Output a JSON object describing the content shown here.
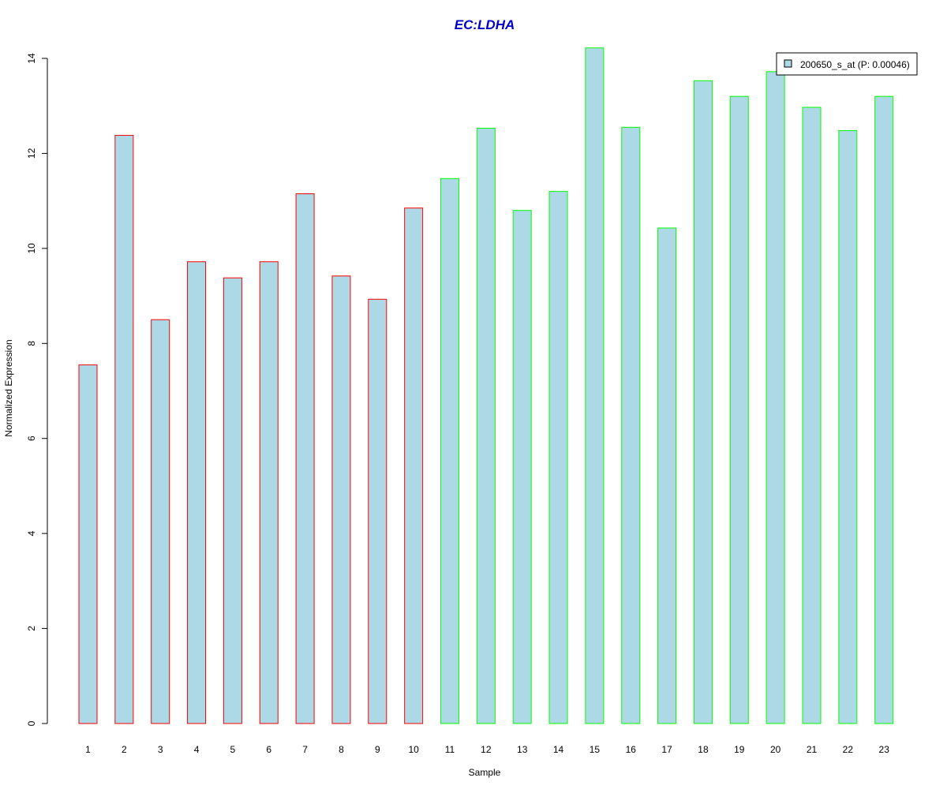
{
  "chart_data": {
    "type": "bar",
    "title": "EC:LDHA",
    "title_color": "#0000CC",
    "xlabel": "Sample",
    "ylabel": "Normalized Expression",
    "ylim": [
      0,
      14
    ],
    "yticks": [
      "0",
      "2",
      "4",
      "6",
      "8",
      "10",
      "12",
      "14"
    ],
    "categories": [
      "1",
      "2",
      "3",
      "4",
      "5",
      "6",
      "7",
      "8",
      "9",
      "10",
      "11",
      "12",
      "13",
      "14",
      "15",
      "16",
      "17",
      "18",
      "19",
      "20",
      "21",
      "22",
      "23"
    ],
    "series": [
      {
        "name": "200650_s_at (P: 0.00046)",
        "values": [
          7.55,
          12.38,
          8.5,
          9.72,
          9.38,
          9.72,
          11.15,
          9.42,
          8.93,
          10.85,
          11.47,
          12.53,
          10.8,
          11.2,
          14.22,
          12.55,
          10.43,
          13.53,
          13.2,
          13.72,
          12.97,
          12.48,
          13.2
        ]
      }
    ],
    "groups": [
      {
        "samples": [
          "1",
          "2",
          "3",
          "4",
          "5",
          "6",
          "7",
          "8",
          "9",
          "10"
        ],
        "border_color": "#FF0000"
      },
      {
        "samples": [
          "11",
          "12",
          "13",
          "14",
          "15",
          "16",
          "17",
          "18",
          "19",
          "20",
          "21",
          "22",
          "23"
        ],
        "border_color": "#00FF00"
      }
    ],
    "bar_fill": "#ADD8E6",
    "legend_position": "top-right",
    "grid": false
  }
}
